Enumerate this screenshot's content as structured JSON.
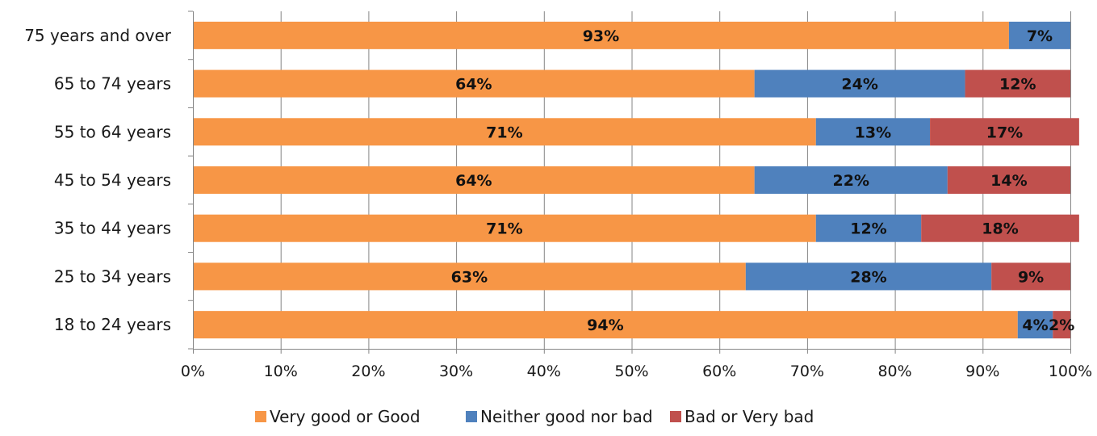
{
  "chart_data": {
    "type": "bar",
    "orientation": "horizontal",
    "stacked": true,
    "percent_stacked": true,
    "categories": [
      "75 years and over",
      "65 to 74 years",
      "55 to 64 years",
      "45 to 54 years",
      "35 to 44 years",
      "25 to 34 years",
      "18 to 24 years"
    ],
    "series": [
      {
        "name": "Very good or Good",
        "color": "#F79646",
        "values": [
          93,
          64,
          71,
          64,
          71,
          63,
          94
        ],
        "labels": [
          "93%",
          "64%",
          "71%",
          "64%",
          "71%",
          "63%",
          "94%"
        ]
      },
      {
        "name": "Neither good nor bad",
        "color": "#4F81BD",
        "values": [
          7,
          24,
          13,
          22,
          12,
          28,
          4
        ],
        "labels": [
          "7%",
          "24%",
          "13%",
          "22%",
          "12%",
          "28%",
          "4%"
        ]
      },
      {
        "name": "Bad or Very bad",
        "color": "#C0504D",
        "values": [
          0,
          12,
          17,
          14,
          18,
          9,
          2
        ],
        "labels": [
          "",
          "12%",
          "17%",
          "14%",
          "18%",
          "9%",
          "2%"
        ]
      }
    ],
    "x_ticks": [
      "0%",
      "10%",
      "20%",
      "30%",
      "40%",
      "50%",
      "60%",
      "70%",
      "80%",
      "90%",
      "100%"
    ],
    "xlim": [
      0,
      100
    ],
    "grid": "vertical",
    "legend": "bottom",
    "title": "",
    "xlabel": "",
    "ylabel": ""
  }
}
